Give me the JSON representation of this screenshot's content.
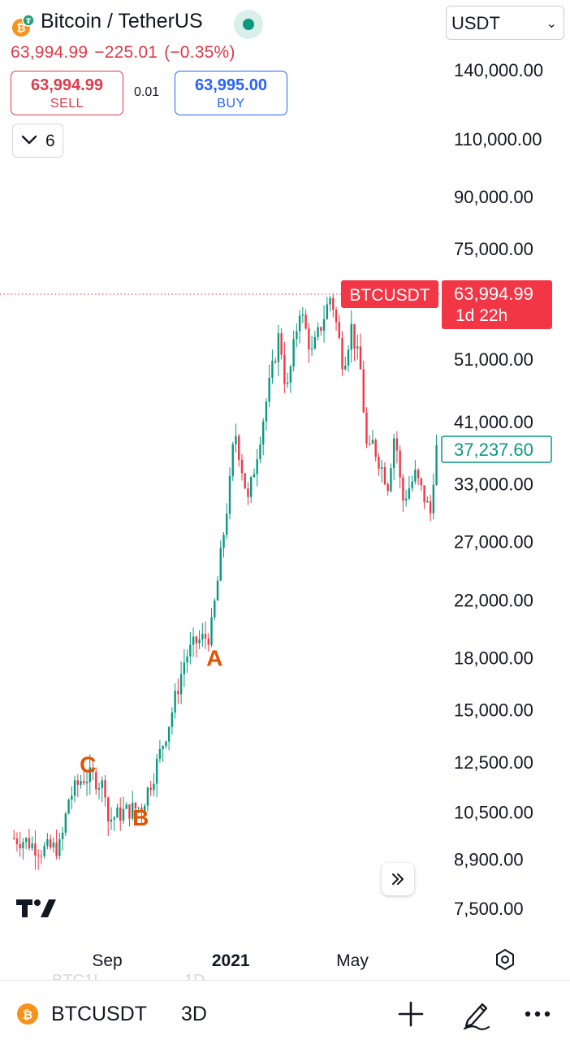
{
  "header": {
    "title": "Bitcoin / TetherUS",
    "currency": "USDT",
    "last_price": "63,994.99",
    "change": "−225.01",
    "change_pct": "(−0.35%)",
    "sell_price": "63,994.99",
    "sell_label": "SELL",
    "spread": "0.01",
    "buy_price": "63,995.00",
    "buy_label": "BUY",
    "collapse_count": "6"
  },
  "chart_data": {
    "type": "candlestick",
    "y_scale": "log",
    "ylim": [
      7000,
      160000
    ],
    "y_ticks": [
      "140,000.00",
      "110,000.00",
      "90,000.00",
      "75,000.00",
      "51,000.00",
      "41,000.00",
      "33,000.00",
      "27,000.00",
      "22,000.00",
      "18,000.00",
      "15,000.00",
      "12,500.00",
      "10,500.00",
      "8,900.00",
      "7,500.00"
    ],
    "y_tick_values": [
      140000,
      110000,
      90000,
      75000,
      51000,
      41000,
      33000,
      27000,
      22000,
      18000,
      15000,
      12500,
      10500,
      8900,
      7500
    ],
    "x_ticks": [
      {
        "label": "Sep",
        "bold": false,
        "date": "2020-09-01"
      },
      {
        "label": "2021",
        "bold": true,
        "date": "2021-01-01"
      },
      {
        "label": "May",
        "bold": false,
        "date": "2021-05-01"
      }
    ],
    "x_range": [
      "2020-06-01",
      "2021-07-25"
    ],
    "colors": {
      "up": "#089981",
      "down": "#f23645"
    },
    "current_price_label": {
      "symbol": "BTCUSDT",
      "price": "63,994.99",
      "countdown": "1d 22h",
      "value": 63994.99
    },
    "crosshair_label": {
      "price": "37,237.60",
      "value": 37237.6
    },
    "annotations": [
      {
        "text": "A",
        "date": "2020-12-16",
        "value": 18000
      },
      {
        "text": "B",
        "date": "2020-10-04",
        "value": 10300
      },
      {
        "text": "C",
        "date": "2020-08-13",
        "value": 12400
      }
    ],
    "waypoints": [
      [
        "2020-06-01",
        9600
      ],
      [
        "2020-06-15",
        9500
      ],
      [
        "2020-07-01",
        9200
      ],
      [
        "2020-07-20",
        9300
      ],
      [
        "2020-07-28",
        11000
      ],
      [
        "2020-08-10",
        11800
      ],
      [
        "2020-08-20",
        11900
      ],
      [
        "2020-09-03",
        11400
      ],
      [
        "2020-09-05",
        10200
      ],
      [
        "2020-09-20",
        10500
      ],
      [
        "2020-10-08",
        10700
      ],
      [
        "2020-10-20",
        12000
      ],
      [
        "2020-11-05",
        14500
      ],
      [
        "2020-11-20",
        18000
      ],
      [
        "2020-12-01",
        19000
      ],
      [
        "2020-12-15",
        19500
      ],
      [
        "2020-12-22",
        23500
      ],
      [
        "2021-01-03",
        33000
      ],
      [
        "2021-01-08",
        40000
      ],
      [
        "2021-01-21",
        31000
      ],
      [
        "2021-02-08",
        44000
      ],
      [
        "2021-02-21",
        56000
      ],
      [
        "2021-02-28",
        45000
      ],
      [
        "2021-03-13",
        61000
      ],
      [
        "2021-03-25",
        52000
      ],
      [
        "2021-04-13",
        64000
      ],
      [
        "2021-04-25",
        50000
      ],
      [
        "2021-05-03",
        57000
      ],
      [
        "2021-05-12",
        49000
      ],
      [
        "2021-05-19",
        36000
      ],
      [
        "2021-05-24",
        38000
      ],
      [
        "2021-06-08",
        33000
      ],
      [
        "2021-06-15",
        40000
      ],
      [
        "2021-06-22",
        31000
      ],
      [
        "2021-07-05",
        34000
      ],
      [
        "2021-07-20",
        29800
      ],
      [
        "2021-07-25",
        37237.6
      ]
    ]
  },
  "bottom": {
    "symbol": "BTCUSDT",
    "interval": "3D",
    "ghost_symbol": "BTC1!",
    "ghost_interval": "1D"
  },
  "icons": {
    "coin": "bitcoin-icon",
    "tether_badge": "tether-badge-icon",
    "settings": "hexagon-settings-icon",
    "scroll": "double-chevron-right-icon",
    "plus": "plus-icon",
    "draw": "pen-icon",
    "more": "more-dots-icon",
    "logo": "tradingview-logo-icon"
  }
}
